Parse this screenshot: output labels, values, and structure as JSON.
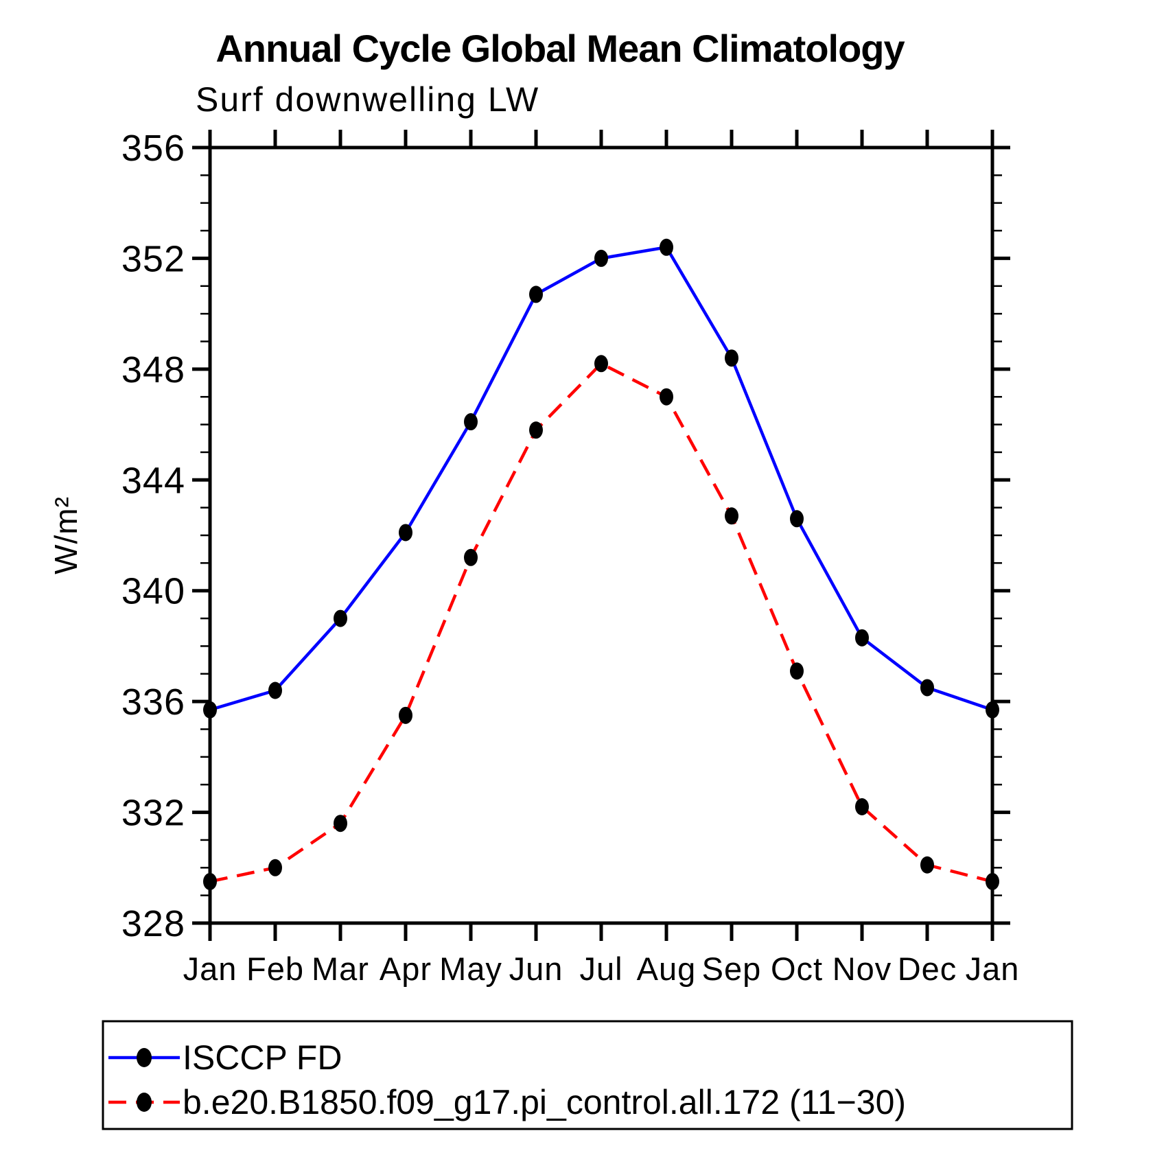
{
  "figure": {
    "title": "Annual Cycle Global Mean Climatology",
    "subtitle": "Surf downwelling LW",
    "y_axis_label": "W/m²"
  },
  "chart_data": {
    "type": "line",
    "title": "Annual Cycle Global Mean Climatology",
    "subtitle": "Surf downwelling LW",
    "xlabel": "",
    "ylabel": "W/m²",
    "categories": [
      "Jan",
      "Feb",
      "Mar",
      "Apr",
      "May",
      "Jun",
      "Jul",
      "Aug",
      "Sep",
      "Oct",
      "Nov",
      "Dec",
      "Jan"
    ],
    "ylim": [
      328,
      356
    ],
    "y_major_ticks": [
      328,
      332,
      336,
      340,
      344,
      348,
      352,
      356
    ],
    "y_minor_step": 1,
    "grid": "off",
    "legend_position": "bottom-left-box",
    "axis_color": "#000000",
    "marker_color": "#000000",
    "series": [
      {
        "name": "ISCCP FD",
        "color": "#0000ff",
        "line_style": "solid",
        "marker": "filled-circle",
        "values": [
          335.7,
          336.4,
          339.0,
          342.1,
          346.1,
          350.7,
          352.0,
          352.4,
          348.4,
          342.6,
          338.3,
          336.5,
          335.7
        ]
      },
      {
        "name": "b.e20.B1850.f09_g17.pi_control.all.172 (11−30)",
        "color": "#ff0000",
        "line_style": "dashed",
        "marker": "filled-circle",
        "values": [
          329.5,
          330.0,
          331.6,
          335.5,
          341.2,
          345.8,
          348.2,
          347.0,
          342.7,
          337.1,
          332.2,
          330.1,
          329.5
        ]
      }
    ]
  }
}
